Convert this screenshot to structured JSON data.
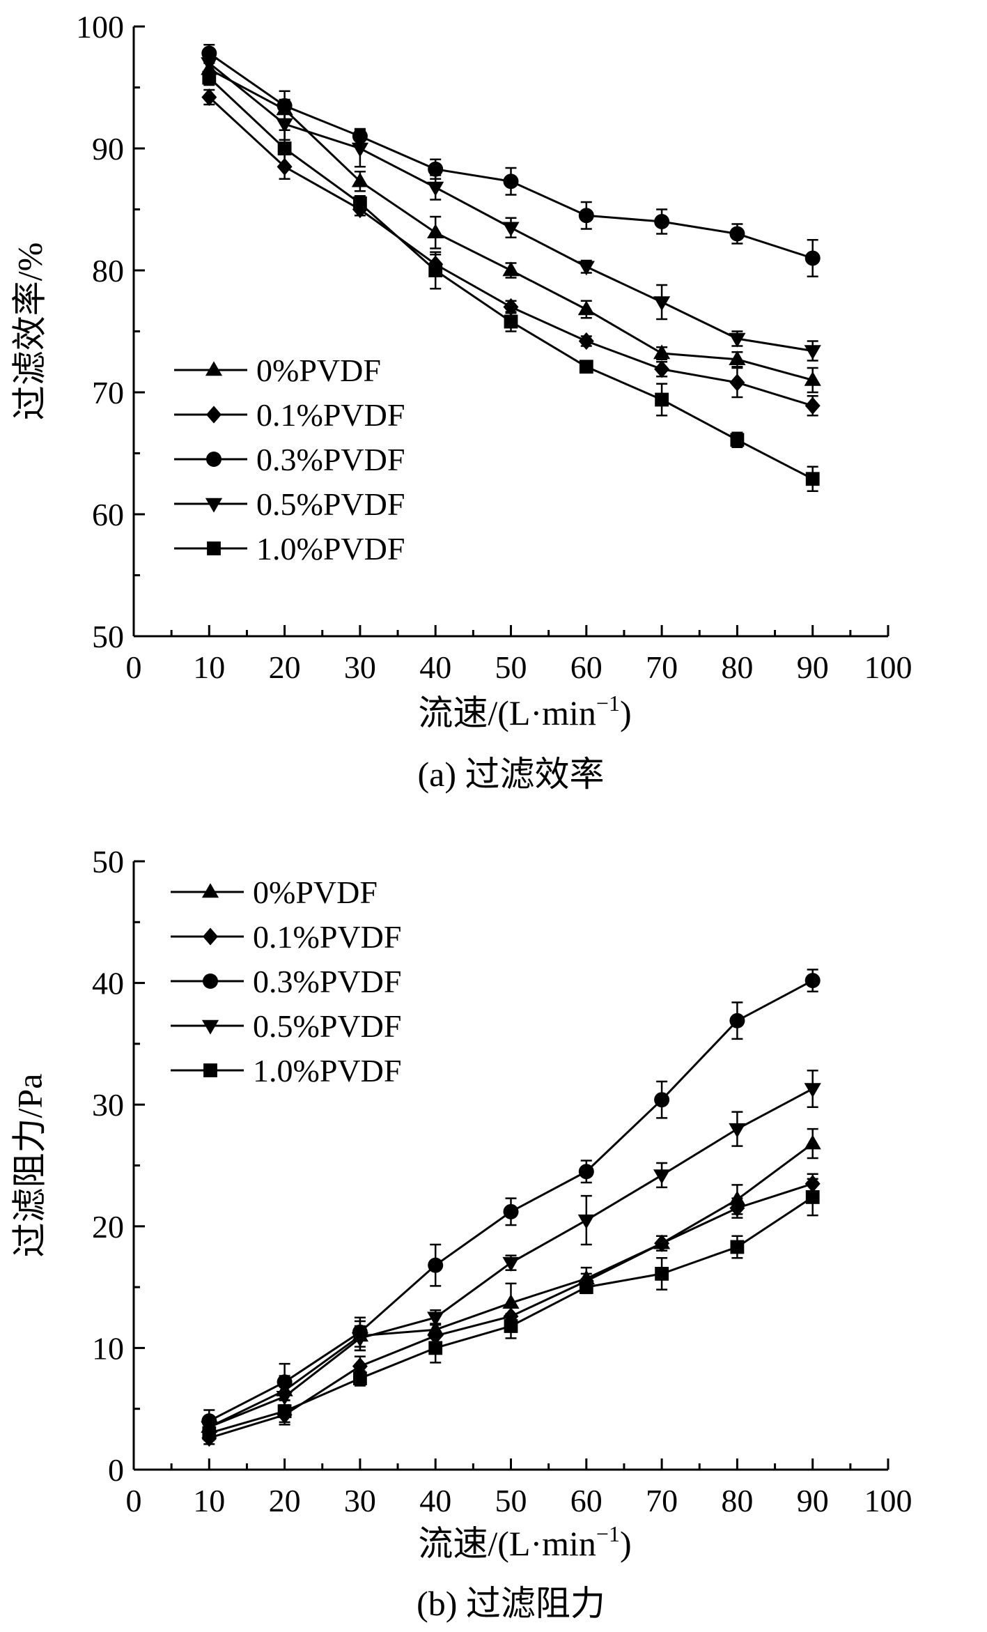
{
  "chart_data": [
    {
      "id": "a",
      "type": "line",
      "caption": "(a) 过滤效率",
      "xlabel": "流速/(L·min",
      "xlabel_sup": "−1",
      "xlabel_close": ")",
      "ylabel": "过滤效率/%",
      "xlim": [
        0,
        100
      ],
      "ylim": [
        50,
        100
      ],
      "xticks": [
        0,
        10,
        20,
        30,
        40,
        50,
        60,
        70,
        80,
        90,
        100
      ],
      "yticks": [
        50,
        60,
        70,
        80,
        90,
        100
      ],
      "x": [
        10,
        20,
        30,
        40,
        50,
        60,
        70,
        80,
        90
      ],
      "legend_position": "middle-left",
      "series": [
        {
          "name": "0%PVDF",
          "marker": "triangle-up",
          "values": [
            96.5,
            93.2,
            87.3,
            83.1,
            80.0,
            76.8,
            73.2,
            72.7,
            71.0
          ],
          "errors": [
            0.5,
            0.8,
            0.8,
            1.3,
            0.6,
            0.7,
            0.5,
            0.6,
            1.0
          ]
        },
        {
          "name": "0.1%PVDF",
          "marker": "diamond",
          "values": [
            94.2,
            88.5,
            85.0,
            80.5,
            77.0,
            74.2,
            71.9,
            70.8,
            68.9
          ],
          "errors": [
            0.6,
            1.0,
            0.5,
            0.8,
            0.5,
            0.4,
            0.6,
            1.2,
            0.8
          ]
        },
        {
          "name": "0.3%PVDF",
          "marker": "circle",
          "values": [
            97.8,
            93.5,
            91.0,
            88.3,
            87.3,
            84.5,
            84.0,
            83.0,
            81.0
          ],
          "errors": [
            0.7,
            1.2,
            0.6,
            0.8,
            1.1,
            1.1,
            1.0,
            0.8,
            1.5
          ]
        },
        {
          "name": "0.5%PVDF",
          "marker": "triangle-down",
          "values": [
            97.0,
            92.0,
            90.0,
            86.8,
            83.5,
            80.3,
            77.4,
            74.4,
            73.4
          ],
          "errors": [
            0.8,
            1.3,
            1.5,
            1.0,
            0.8,
            0.5,
            1.4,
            0.6,
            0.8
          ]
        },
        {
          "name": "1.0%PVDF",
          "marker": "square",
          "values": [
            95.8,
            90.0,
            85.5,
            80.0,
            75.8,
            72.1,
            69.4,
            66.1,
            62.9
          ],
          "errors": [
            0.6,
            1.5,
            0.6,
            1.5,
            0.8,
            0.4,
            1.3,
            0.6,
            1.0
          ]
        }
      ]
    },
    {
      "id": "b",
      "type": "line",
      "caption": "(b) 过滤阻力",
      "xlabel": "流速/(L·min",
      "xlabel_sup": "−1",
      "xlabel_close": ")",
      "ylabel": "过滤阻力/Pa",
      "xlim": [
        0,
        100
      ],
      "ylim": [
        0,
        50
      ],
      "xticks": [
        0,
        10,
        20,
        30,
        40,
        50,
        60,
        70,
        80,
        90,
        100
      ],
      "yticks": [
        0,
        10,
        20,
        30,
        40,
        50
      ],
      "x": [
        10,
        20,
        30,
        40,
        50,
        60,
        70,
        80,
        90
      ],
      "legend_position": "top-left",
      "series": [
        {
          "name": "0%PVDF",
          "marker": "triangle-up",
          "values": [
            3.5,
            6.5,
            11.0,
            11.5,
            13.7,
            15.7,
            18.6,
            22.2,
            26.8
          ],
          "errors": [
            0.8,
            1.2,
            1.2,
            1.2,
            1.6,
            0.9,
            0.6,
            1.2,
            1.2
          ]
        },
        {
          "name": "0.1%PVDF",
          "marker": "diamond",
          "values": [
            2.6,
            4.5,
            8.5,
            11.0,
            12.6,
            15.5,
            18.6,
            21.5,
            23.5
          ],
          "errors": [
            0.5,
            0.8,
            0.8,
            1.0,
            0.8,
            0.6,
            0.6,
            0.8,
            0.8
          ]
        },
        {
          "name": "0.3%PVDF",
          "marker": "circle",
          "values": [
            4.0,
            7.2,
            11.3,
            16.8,
            21.2,
            24.5,
            30.4,
            36.9,
            40.2
          ],
          "errors": [
            0.9,
            1.5,
            1.2,
            1.7,
            1.1,
            0.9,
            1.5,
            1.5,
            0.9
          ]
        },
        {
          "name": "0.5%PVDF",
          "marker": "triangle-down",
          "values": [
            3.5,
            6.0,
            10.8,
            12.5,
            17.0,
            20.5,
            24.2,
            28.0,
            31.3
          ],
          "errors": [
            0.6,
            1.0,
            1.0,
            0.6,
            0.6,
            2.0,
            1.0,
            1.4,
            1.5
          ]
        },
        {
          "name": "1.0%PVDF",
          "marker": "square",
          "values": [
            3.0,
            4.8,
            7.5,
            10.0,
            11.8,
            15.0,
            16.1,
            18.3,
            22.4
          ],
          "errors": [
            0.6,
            0.9,
            0.6,
            1.2,
            1.0,
            0.5,
            1.3,
            0.9,
            1.5
          ]
        }
      ]
    }
  ]
}
